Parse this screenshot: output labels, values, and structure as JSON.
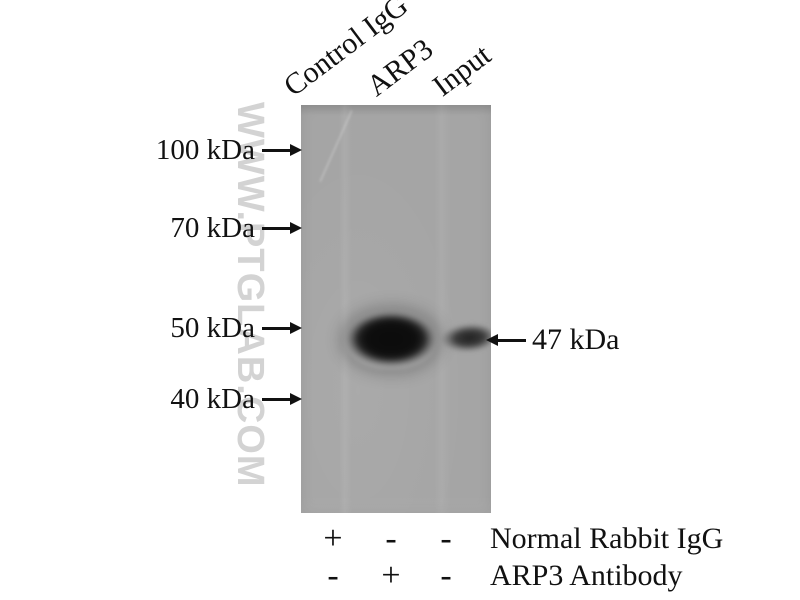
{
  "watermark": {
    "text": "WWW.PTGLAB.COM",
    "color": "#d3d3d3"
  },
  "lanes": [
    {
      "label": "Control IgG"
    },
    {
      "label": "ARP3"
    },
    {
      "label": "Input"
    }
  ],
  "markers": [
    {
      "label": "100 kDa",
      "kda": 100
    },
    {
      "label": "70 kDa",
      "kda": 70
    },
    {
      "label": "50 kDa",
      "kda": 50
    },
    {
      "label": "40 kDa",
      "kda": 40
    }
  ],
  "band_annotation": {
    "label": "47 kDa"
  },
  "blot": {
    "background_color": "#a5a5a5",
    "bands": [
      {
        "lane": "ARP3",
        "intensity": "strong",
        "approx_kda": 47
      },
      {
        "lane": "Input",
        "intensity": "weak",
        "approx_kda": 47
      }
    ]
  },
  "conditions": {
    "rows": [
      {
        "cells": [
          "+",
          "-",
          "-"
        ],
        "label": "Normal Rabbit IgG"
      },
      {
        "cells": [
          "-",
          "+",
          "-"
        ],
        "label": "ARP3 Antibody"
      }
    ]
  }
}
